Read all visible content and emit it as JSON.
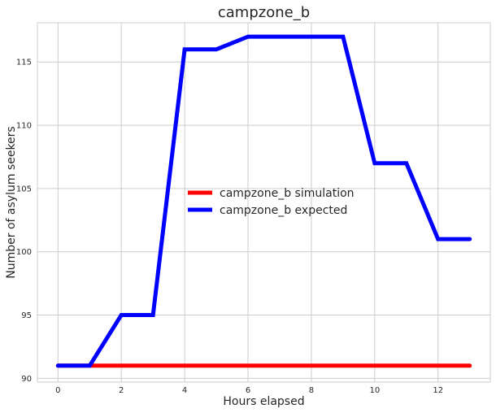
{
  "chart_data": {
    "type": "line",
    "title": "campzone_b",
    "xlabel": "Hours elapsed",
    "ylabel": "Number of asylum seekers",
    "xlim": [
      -0.65,
      13.65
    ],
    "ylim": [
      89.7,
      118.1
    ],
    "xticks": [
      0,
      2,
      4,
      6,
      8,
      10,
      12
    ],
    "yticks": [
      90,
      95,
      100,
      105,
      110,
      115
    ],
    "grid": true,
    "legend_position": "center",
    "x": [
      0,
      1,
      2,
      3,
      4,
      5,
      6,
      7,
      8,
      9,
      10,
      11,
      12,
      13
    ],
    "series": [
      {
        "name": "campzone_b simulation",
        "color": "#ff0000",
        "values": [
          91,
          91,
          91,
          91,
          91,
          91,
          91,
          91,
          91,
          91,
          91,
          91,
          91,
          91
        ]
      },
      {
        "name": "campzone_b expected",
        "color": "#0000ff",
        "values": [
          91,
          91,
          95,
          95,
          116,
          116,
          117,
          117,
          117,
          117,
          107,
          107,
          101,
          101
        ]
      }
    ]
  }
}
